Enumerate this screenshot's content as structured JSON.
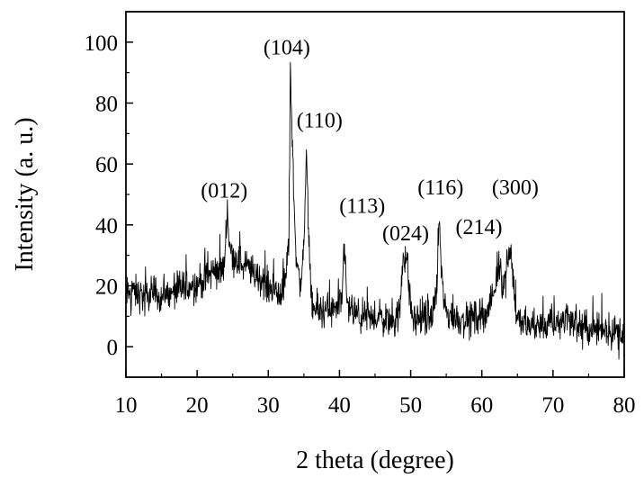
{
  "chart_data": {
    "type": "line",
    "title": "",
    "xlabel": "2 theta (degree)",
    "ylabel": "Intensity (a. u.)",
    "xlim": [
      10,
      80
    ],
    "ylim": [
      -10,
      110
    ],
    "grid": false,
    "legend": "none",
    "x_ticks": [
      10,
      20,
      30,
      40,
      50,
      60,
      70,
      80
    ],
    "y_ticks": [
      0,
      20,
      40,
      60,
      80,
      100
    ],
    "x_tick_labels": [
      "10",
      "20",
      "30",
      "40",
      "50",
      "60",
      "70",
      "80"
    ],
    "y_tick_labels": [
      "0",
      "20",
      "40",
      "60",
      "80",
      "100"
    ],
    "line_color": "#000000",
    "series": [
      {
        "x": [
          10.0,
          11.0,
          12.0,
          13.0,
          14.0,
          15.0,
          16.0,
          17.0,
          18.0,
          19.0,
          20.0,
          21.0,
          22.0,
          23.0,
          23.8,
          24.2,
          24.7,
          25.5,
          26.5,
          27.5,
          28.5,
          29.5,
          30.5,
          31.5,
          32.4,
          32.9,
          33.1,
          33.3,
          33.6,
          34.0,
          34.5,
          35.0,
          35.4,
          35.7,
          36.0,
          36.5,
          37.5,
          38.5,
          39.5,
          40.3,
          40.7,
          41.0,
          41.3,
          41.8,
          42.5,
          43.5,
          44.5,
          45.5,
          46.5,
          47.5,
          48.5,
          49.0,
          49.3,
          49.6,
          49.9,
          50.3,
          51.0,
          52.0,
          53.0,
          53.7,
          54.0,
          54.2,
          54.5,
          55.0,
          56.0,
          57.0,
          58.0,
          59.0,
          60.0,
          61.0,
          61.8,
          62.3,
          62.6,
          62.9,
          63.3,
          63.8,
          64.1,
          64.4,
          64.8,
          65.5,
          66.5,
          67.5,
          68.5,
          69.5,
          70.5,
          71.5,
          72.0,
          72.5,
          73.5,
          74.5,
          75.5,
          76.5,
          77.5,
          78.5,
          79.5,
          80.0
        ],
        "y": [
          17,
          18,
          17,
          16,
          18,
          16,
          17,
          18,
          20,
          20,
          21,
          22,
          24,
          25,
          26,
          45,
          30,
          29,
          27,
          25,
          23,
          21,
          19,
          18,
          21,
          35,
          93,
          74,
          48,
          27,
          20,
          33,
          64,
          35,
          15,
          12,
          12,
          12,
          11,
          14,
          35,
          16,
          12,
          11,
          10,
          9,
          9,
          10,
          9,
          9,
          11,
          32,
          30,
          25,
          15,
          9,
          9,
          9,
          10,
          20,
          43,
          30,
          18,
          11,
          10,
          9,
          9,
          10,
          11,
          12,
          18,
          26,
          28,
          20,
          22,
          32,
          33,
          22,
          12,
          8,
          7,
          7,
          7,
          7,
          8,
          8,
          12,
          8,
          7,
          6,
          6,
          6,
          6,
          5,
          5,
          5
        ],
        "noise_amplitude": 3.5
      }
    ],
    "annotations": [
      {
        "text": "(012)",
        "x": 23.8,
        "y": 49
      },
      {
        "text": "(104)",
        "x": 32.6,
        "y": 96
      },
      {
        "text": "(110)",
        "x": 37.2,
        "y": 72
      },
      {
        "text": "(113)",
        "x": 43.2,
        "y": 44
      },
      {
        "text": "(024)",
        "x": 49.3,
        "y": 35
      },
      {
        "text": "(116)",
        "x": 54.2,
        "y": 50
      },
      {
        "text": "(214)",
        "x": 59.6,
        "y": 37
      },
      {
        "text": "(300)",
        "x": 64.7,
        "y": 50
      }
    ]
  }
}
